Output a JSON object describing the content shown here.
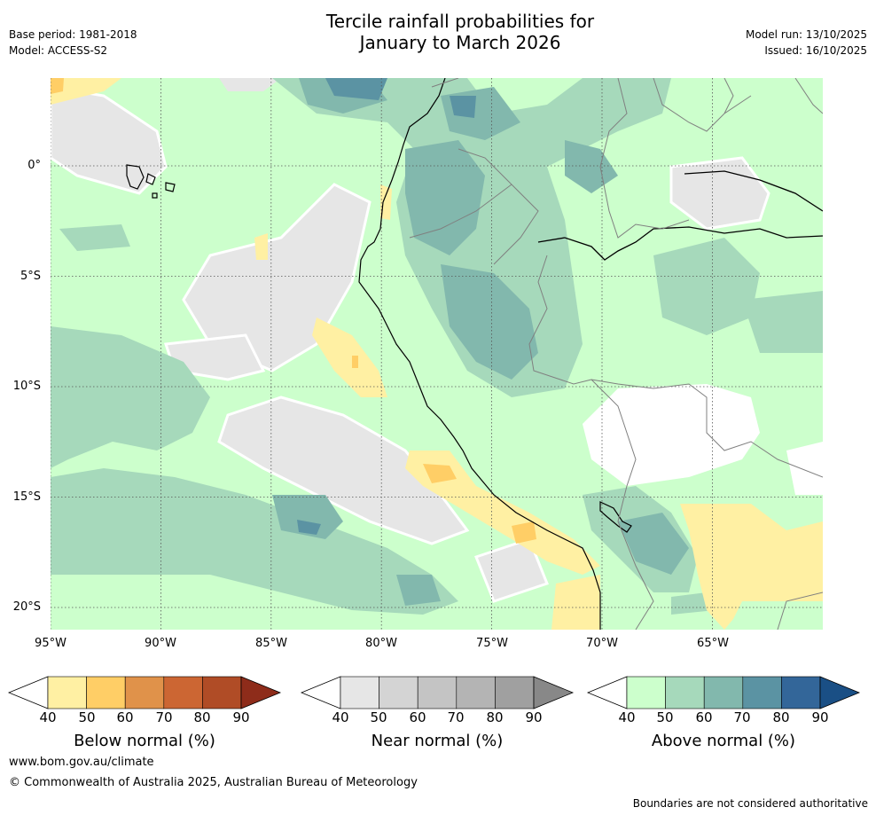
{
  "title": {
    "line1": "Tercile rainfall probabilities for",
    "line2": "January to March 2026"
  },
  "meta": {
    "base_period": "Base period: 1981-2018",
    "model": "Model: ACCESS-S2",
    "model_run": "Model run: 13/10/2025",
    "issued": "Issued: 16/10/2025"
  },
  "axes": {
    "lat_labels": [
      "0°",
      "5°S",
      "10°S",
      "15°S",
      "20°S"
    ],
    "lon_labels": [
      "95°W",
      "90°W",
      "85°W",
      "80°W",
      "75°W",
      "70°W",
      "65°W"
    ]
  },
  "colorbars": [
    {
      "label": "Below normal (%)",
      "ticks": [
        "40",
        "50",
        "60",
        "70",
        "80",
        "90"
      ],
      "colors": [
        "#fff0a3",
        "#ffce66",
        "#e0924a",
        "#cc6633",
        "#b04c26",
        "#8e2c1a"
      ]
    },
    {
      "label": "Near normal (%)",
      "ticks": [
        "40",
        "50",
        "60",
        "70",
        "80",
        "90"
      ],
      "colors": [
        "#e6e6e6",
        "#d4d4d4",
        "#c4c4c4",
        "#b4b4b4",
        "#a0a0a0",
        "#888888"
      ]
    },
    {
      "label": "Above normal (%)",
      "ticks": [
        "40",
        "50",
        "60",
        "70",
        "80",
        "90"
      ],
      "colors": [
        "#ccffcc",
        "#a6d9bb",
        "#82b8ad",
        "#5b93a3",
        "#336699",
        "#1a4f85"
      ]
    }
  ],
  "footer": {
    "url": "www.bom.gov.au/climate",
    "copyright": "© Commonwealth of Australia 2025, Australian Bureau of Meteorology",
    "disclaimer": "Boundaries are not considered authoritative"
  }
}
